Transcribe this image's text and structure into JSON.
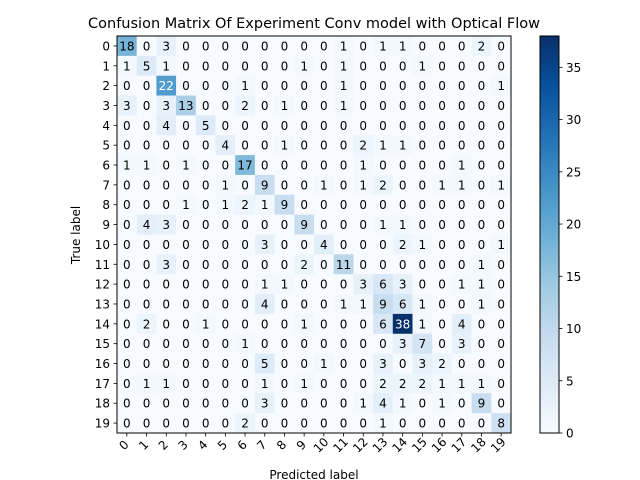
{
  "chart_data": {
    "type": "heatmap",
    "title": "Confusion Matrix Of Experiment Conv model with Optical Flow",
    "xlabel": "Predicted label",
    "ylabel": "True label",
    "x_labels": [
      "0",
      "1",
      "2",
      "3",
      "4",
      "5",
      "6",
      "7",
      "8",
      "9",
      "10",
      "11",
      "12",
      "13",
      "14",
      "15",
      "16",
      "17",
      "18",
      "19"
    ],
    "y_labels": [
      "0",
      "1",
      "2",
      "3",
      "4",
      "5",
      "6",
      "7",
      "8",
      "9",
      "10",
      "11",
      "12",
      "13",
      "14",
      "15",
      "16",
      "17",
      "18",
      "19"
    ],
    "matrix": [
      [
        18,
        0,
        3,
        0,
        0,
        0,
        0,
        0,
        0,
        0,
        0,
        1,
        0,
        1,
        1,
        0,
        0,
        0,
        2,
        0
      ],
      [
        1,
        5,
        1,
        0,
        0,
        0,
        0,
        0,
        0,
        1,
        0,
        1,
        0,
        0,
        0,
        1,
        0,
        0,
        0,
        0
      ],
      [
        0,
        0,
        22,
        0,
        0,
        0,
        1,
        0,
        0,
        0,
        0,
        1,
        0,
        0,
        0,
        0,
        0,
        0,
        0,
        1
      ],
      [
        3,
        0,
        3,
        13,
        0,
        0,
        2,
        0,
        1,
        0,
        0,
        1,
        0,
        0,
        0,
        0,
        0,
        0,
        0,
        0
      ],
      [
        0,
        0,
        4,
        0,
        5,
        0,
        0,
        0,
        0,
        0,
        0,
        0,
        0,
        0,
        0,
        0,
        0,
        0,
        0,
        0
      ],
      [
        0,
        0,
        0,
        0,
        0,
        4,
        0,
        0,
        1,
        0,
        0,
        0,
        2,
        1,
        1,
        0,
        0,
        0,
        0,
        0
      ],
      [
        1,
        1,
        0,
        1,
        0,
        0,
        17,
        0,
        0,
        0,
        0,
        0,
        1,
        0,
        0,
        0,
        0,
        1,
        0,
        0
      ],
      [
        0,
        0,
        0,
        0,
        0,
        1,
        0,
        9,
        0,
        0,
        1,
        0,
        1,
        2,
        0,
        0,
        1,
        1,
        0,
        1
      ],
      [
        0,
        0,
        0,
        1,
        0,
        1,
        2,
        1,
        9,
        0,
        0,
        0,
        0,
        0,
        0,
        0,
        0,
        0,
        0,
        0
      ],
      [
        0,
        4,
        3,
        0,
        0,
        0,
        0,
        0,
        0,
        9,
        0,
        0,
        0,
        1,
        1,
        0,
        0,
        0,
        0,
        0
      ],
      [
        0,
        0,
        0,
        0,
        0,
        0,
        0,
        3,
        0,
        0,
        4,
        0,
        0,
        0,
        2,
        1,
        0,
        0,
        0,
        1
      ],
      [
        0,
        0,
        3,
        0,
        0,
        0,
        0,
        0,
        0,
        2,
        0,
        11,
        0,
        0,
        0,
        0,
        0,
        0,
        1,
        0
      ],
      [
        0,
        0,
        0,
        0,
        0,
        0,
        0,
        1,
        1,
        0,
        0,
        0,
        3,
        6,
        3,
        0,
        0,
        1,
        1,
        0
      ],
      [
        0,
        0,
        0,
        0,
        0,
        0,
        0,
        4,
        0,
        0,
        0,
        1,
        1,
        9,
        6,
        1,
        0,
        0,
        1,
        0
      ],
      [
        0,
        2,
        0,
        0,
        1,
        0,
        0,
        0,
        0,
        1,
        0,
        0,
        0,
        6,
        38,
        1,
        0,
        4,
        0,
        0
      ],
      [
        0,
        0,
        0,
        0,
        0,
        0,
        1,
        0,
        0,
        0,
        0,
        0,
        0,
        0,
        3,
        7,
        0,
        3,
        0,
        0
      ],
      [
        0,
        0,
        0,
        0,
        0,
        0,
        0,
        5,
        0,
        0,
        1,
        0,
        0,
        3,
        0,
        3,
        2,
        0,
        0,
        0
      ],
      [
        0,
        1,
        1,
        0,
        0,
        0,
        0,
        1,
        0,
        1,
        0,
        0,
        0,
        2,
        2,
        2,
        1,
        1,
        1,
        0
      ],
      [
        0,
        0,
        0,
        0,
        0,
        0,
        0,
        3,
        0,
        0,
        0,
        0,
        1,
        4,
        1,
        0,
        1,
        0,
        9,
        0
      ],
      [
        0,
        0,
        0,
        0,
        0,
        0,
        2,
        0,
        0,
        0,
        0,
        0,
        0,
        1,
        0,
        0,
        0,
        0,
        0,
        8
      ]
    ],
    "colormap": "Blues",
    "vmin": 0,
    "vmax": 38,
    "colorbar_ticks": [
      0,
      5,
      10,
      15,
      20,
      25,
      30,
      35
    ],
    "grid": false
  }
}
